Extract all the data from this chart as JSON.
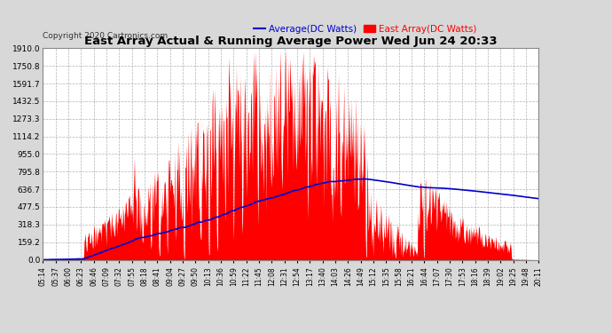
{
  "title": "East Array Actual & Running Average Power Wed Jun 24 20:33",
  "copyright": "Copyright 2020 Cartronics.com",
  "legend_avg": "Average(DC Watts)",
  "legend_east": "East Array(DC Watts)",
  "y_max": 1910.0,
  "y_ticks": [
    0.0,
    159.2,
    318.3,
    477.5,
    636.7,
    795.8,
    955.0,
    1114.2,
    1273.3,
    1432.5,
    1591.7,
    1750.8,
    1910.0
  ],
  "background_color": "#d8d8d8",
  "plot_bg_color": "#ffffff",
  "title_color": "#000000",
  "east_color": "#ff0000",
  "avg_color": "#0000cc",
  "grid_color": "#aaaaaa",
  "x_tick_labels": [
    "05:14",
    "05:37",
    "06:00",
    "06:23",
    "06:46",
    "07:09",
    "07:32",
    "07:55",
    "08:18",
    "08:41",
    "09:04",
    "09:27",
    "09:50",
    "10:13",
    "10:36",
    "10:59",
    "11:22",
    "11:45",
    "12:08",
    "12:31",
    "12:54",
    "13:17",
    "13:40",
    "14:03",
    "14:26",
    "14:49",
    "15:12",
    "15:35",
    "15:58",
    "16:21",
    "16:44",
    "17:07",
    "17:30",
    "17:53",
    "18:16",
    "18:39",
    "19:02",
    "19:25",
    "19:48",
    "20:11"
  ]
}
